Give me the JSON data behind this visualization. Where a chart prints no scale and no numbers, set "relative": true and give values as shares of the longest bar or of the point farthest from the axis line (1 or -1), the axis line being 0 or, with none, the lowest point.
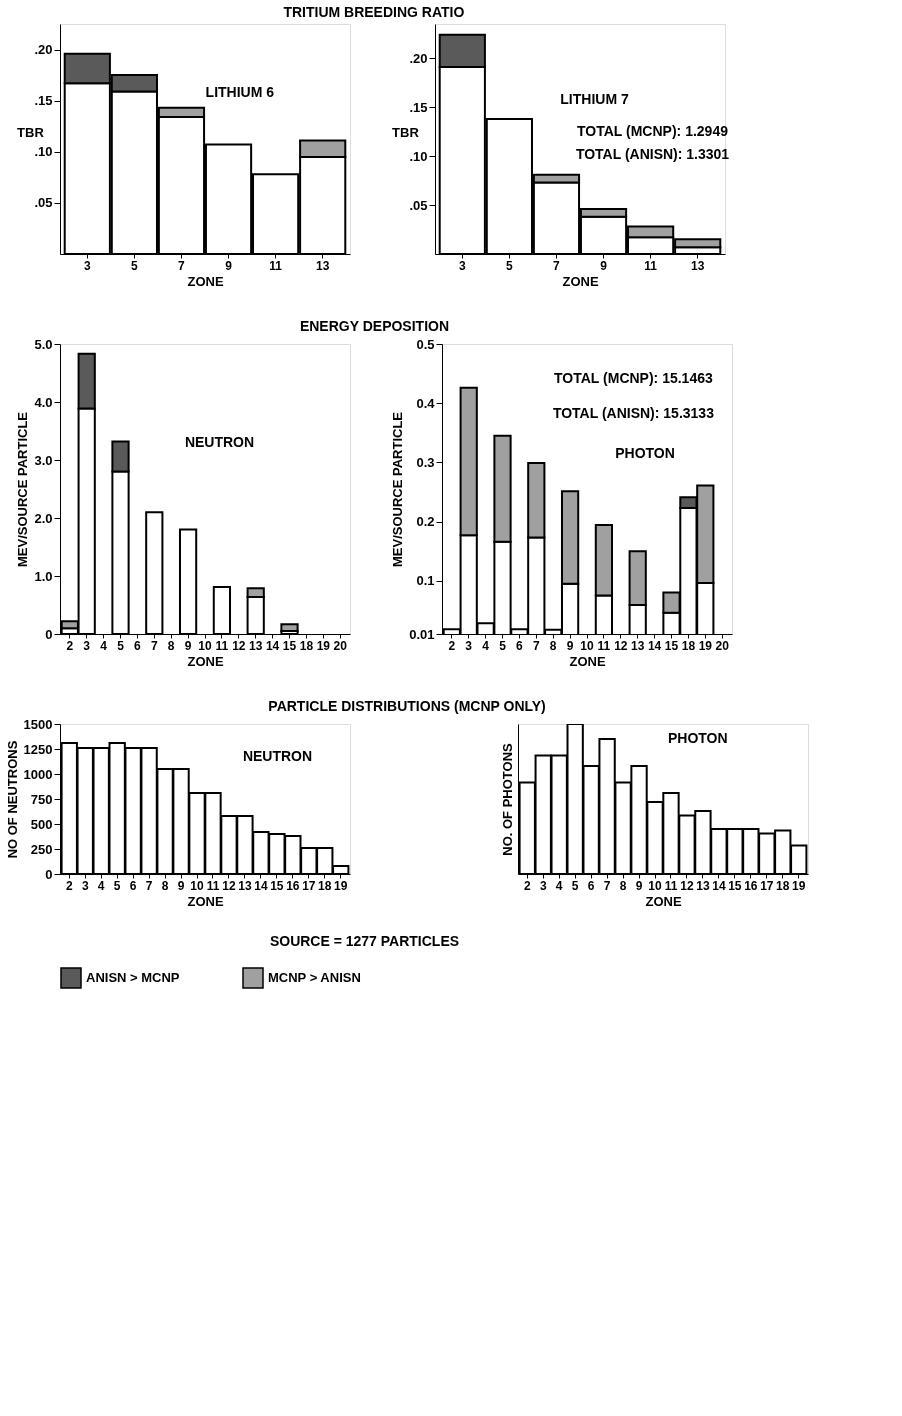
{
  "chart_data": [
    {
      "type": "bar",
      "stacked": true,
      "legend": "bottom",
      "title": "TRITIUM BREEDING RATIO",
      "xlabel": "ZONE",
      "ylabel": "TBR",
      "categories": [
        "3",
        "5",
        "7",
        "9",
        "11",
        "13"
      ],
      "ylim": [
        0,
        0.225
      ],
      "yticks": [
        {
          "value": 0.05,
          "label": ".05"
        },
        {
          "value": 0.1,
          "label": ".10"
        },
        {
          "value": 0.15,
          "label": ".15"
        },
        {
          "value": 0.2,
          "label": ".20"
        }
      ],
      "annotations": [
        "LITHIUM 6"
      ],
      "series": [
        {
          "color": "#ffffff",
          "values": [
            0.167,
            0.159,
            0.134,
            0.107,
            0.078,
            0.095
          ]
        },
        {
          "name": "ANISN > MCNP",
          "color": "#5a5a5a",
          "values": [
            0.029,
            0.016,
            null,
            null,
            null,
            null
          ]
        },
        {
          "name": "MCNP > ANISN",
          "color": "#a0a0a0",
          "values": [
            null,
            null,
            0.009,
            null,
            null,
            0.016
          ]
        }
      ]
    },
    {
      "type": "bar",
      "stacked": true,
      "legend": "bottom",
      "xlabel": "ZONE",
      "ylabel": "TBR",
      "categories": [
        "3",
        "5",
        "7",
        "9",
        "11",
        "13"
      ],
      "ylim": [
        0,
        0.235
      ],
      "yticks": [
        {
          "value": 0.05,
          "label": ".05"
        },
        {
          "value": 0.1,
          "label": ".10"
        },
        {
          "value": 0.15,
          "label": ".15"
        },
        {
          "value": 0.2,
          "label": ".20"
        }
      ],
      "annotations": [
        "LITHIUM 7",
        "TOTAL (MCNP):  1.2949",
        "TOTAL (ANISN):  1.3301"
      ],
      "series": [
        {
          "color": "#ffffff",
          "values": [
            0.191,
            0.138,
            0.073,
            0.038,
            0.017,
            0.007
          ]
        },
        {
          "name": "ANISN > MCNP",
          "color": "#5a5a5a",
          "values": [
            0.033,
            null,
            null,
            null,
            null,
            null
          ]
        },
        {
          "name": "MCNP > ANISN",
          "color": "#a0a0a0",
          "values": [
            null,
            null,
            0.008,
            0.008,
            0.011,
            0.008
          ]
        }
      ]
    },
    {
      "type": "bar",
      "stacked": true,
      "legend": "bottom",
      "title": "ENERGY DEPOSITION",
      "xlabel": "ZONE",
      "ylabel": "MEV/SOURCE PARTICLE",
      "categories": [
        "2",
        "3",
        "4",
        "5",
        "6",
        "7",
        "8",
        "9",
        "10",
        "11",
        "12",
        "13",
        "14",
        "15",
        "18",
        "19",
        "20"
      ],
      "ylim": [
        0,
        5
      ],
      "yticks": [
        0,
        {
          "value": 1,
          "label": "1.0"
        },
        {
          "value": 2,
          "label": "2.0"
        },
        {
          "value": 3,
          "label": "3.0"
        },
        {
          "value": 4,
          "label": "4.0"
        },
        {
          "value": 5,
          "label": "5.0"
        }
      ],
      "annotations": [
        "NEUTRON"
      ],
      "series": [
        {
          "color": "#ffffff",
          "values": [
            0.1,
            3.89,
            null,
            2.8,
            null,
            2.1,
            null,
            1.8,
            null,
            0.81,
            null,
            0.64,
            null,
            0.05,
            null,
            null,
            null
          ]
        },
        {
          "name": "ANISN > MCNP",
          "color": "#5a5a5a",
          "values": [
            null,
            0.94,
            null,
            0.52,
            null,
            null,
            null,
            null,
            null,
            null,
            null,
            null,
            null,
            null,
            null,
            null,
            null
          ]
        },
        {
          "name": "MCNP > ANISN",
          "color": "#a0a0a0",
          "values": [
            0.12,
            null,
            null,
            null,
            null,
            null,
            null,
            null,
            null,
            null,
            null,
            0.15,
            null,
            0.12,
            null,
            null,
            null
          ]
        }
      ]
    },
    {
      "type": "bar",
      "stacked": true,
      "xlabel": "ZONE",
      "ylabel": "MEV/SOURCE PARTICLE",
      "legend": "bottom",
      "categories": [
        "2",
        "3",
        "4",
        "5",
        "6",
        "7",
        "8",
        "9",
        "10",
        "11",
        "12",
        "13",
        "14",
        "15",
        "18",
        "19",
        "20"
      ],
      "ylim": [
        0.01,
        0.5
      ],
      "yticks": [
        0.01,
        0.1,
        0.2,
        0.3,
        0.4,
        0.5
      ],
      "annotations": [
        "TOTAL (MCNP):  15.1463",
        "TOTAL (ANISN):  15.3133",
        "PHOTON"
      ],
      "series": [
        {
          "color": "#ffffff",
          "values": [
            0.018,
            0.177,
            0.028,
            0.166,
            0.018,
            0.173,
            0.017,
            0.095,
            null,
            0.075,
            null,
            0.059,
            null,
            0.046,
            0.223,
            0.096,
            null
          ]
        },
        {
          "name": "ANISN > MCNP",
          "color": "#5a5a5a",
          "values": [
            null,
            null,
            null,
            null,
            null,
            null,
            null,
            null,
            null,
            null,
            null,
            null,
            null,
            null,
            0.018,
            null,
            null
          ]
        },
        {
          "name": "MCNP > ANISN",
          "color": "#a0a0a0",
          "values": [
            null,
            0.249,
            null,
            0.179,
            null,
            0.126,
            null,
            0.156,
            null,
            0.119,
            null,
            0.091,
            null,
            0.034,
            null,
            0.165,
            null
          ]
        }
      ]
    },
    {
      "type": "bar",
      "title": "PARTICLE DISTRIBUTIONS (MCNP ONLY)",
      "xlabel": "ZONE",
      "ylabel": "NO OF NEUTRONS",
      "categories": [
        "2",
        "3",
        "4",
        "5",
        "6",
        "7",
        "8",
        "9",
        "10",
        "11",
        "12",
        "13",
        "14",
        "15",
        "16",
        "17",
        "18",
        "19"
      ],
      "ylim": [
        0,
        1500
      ],
      "yticks": [
        0,
        250,
        500,
        750,
        1000,
        1250,
        1500
      ],
      "annotations": [
        "NEUTRON",
        "SOURCE = 1277 PARTICLES"
      ],
      "series": [
        {
          "color": "#ffffff",
          "values": [
            1310,
            1260,
            1260,
            1310,
            1260,
            1260,
            1050,
            1050,
            810,
            810,
            580,
            580,
            420,
            400,
            380,
            260,
            260,
            80
          ]
        }
      ]
    },
    {
      "type": "bar",
      "relative": true,
      "xlabel": "ZONE",
      "ylabel": "NO. OF PHOTONS",
      "categories": [
        "2",
        "3",
        "4",
        "5",
        "6",
        "7",
        "8",
        "9",
        "10",
        "11",
        "12",
        "13",
        "14",
        "15",
        "16",
        "17",
        "18",
        "19"
      ],
      "annotations": [
        "PHOTON"
      ],
      "series": [
        {
          "color": "#ffffff",
          "values": [
            0.61,
            0.79,
            0.79,
            1,
            0.72,
            0.9,
            0.61,
            0.72,
            0.48,
            0.54,
            0.39,
            0.42,
            0.3,
            0.3,
            0.3,
            0.27,
            0.29,
            0.19
          ]
        }
      ]
    }
  ]
}
